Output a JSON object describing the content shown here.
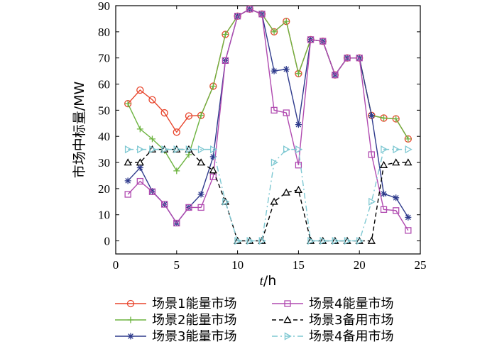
{
  "chart_data": {
    "type": "line",
    "title": "",
    "xlabel_italic": "t",
    "xlabel_unit": "/h",
    "ylabel": "市场中标量/MW",
    "xlim": [
      0,
      25
    ],
    "ylim": [
      -5,
      90
    ],
    "xticks": [
      0,
      5,
      10,
      15,
      20,
      25
    ],
    "yticks": [
      0,
      10,
      20,
      30,
      40,
      50,
      60,
      70,
      80,
      90
    ],
    "grid": false,
    "legend_position": "bottom",
    "x": [
      1,
      2,
      3,
      4,
      5,
      6,
      7,
      8,
      9,
      10,
      11,
      12,
      13,
      14,
      15,
      16,
      17,
      18,
      19,
      20,
      21,
      22,
      23,
      24
    ],
    "series": [
      {
        "name": "场景1能量市场",
        "color": "#e8452c",
        "marker": "circle",
        "dash": "solid",
        "values": [
          52.5,
          57.7,
          54,
          49,
          41.6,
          47.8,
          48,
          59.2,
          79,
          86,
          88.7,
          86.8,
          80,
          84,
          64,
          77,
          76.4,
          63.5,
          70,
          70,
          48,
          47,
          46.7,
          39
        ]
      },
      {
        "name": "场景2能量市场",
        "color": "#6cb33f",
        "marker": "plus",
        "dash": "solid",
        "values": [
          52.5,
          42.8,
          39,
          34.6,
          26.8,
          33,
          48,
          59.2,
          79,
          86,
          88.7,
          86.8,
          80,
          84,
          64,
          77,
          76.4,
          63.5,
          70,
          70,
          48,
          47,
          46.7,
          39
        ]
      },
      {
        "name": "场景3能量市场",
        "color": "#2e3a8c",
        "marker": "star",
        "dash": "solid",
        "values": [
          23,
          28,
          19,
          14,
          6.8,
          12.8,
          17.8,
          32.2,
          69,
          86,
          88.7,
          86.8,
          65,
          65.7,
          44.5,
          77,
          76.4,
          63.5,
          70,
          70,
          48,
          18,
          16.5,
          9
        ]
      },
      {
        "name": "场景4能量市场",
        "color": "#b04ab0",
        "marker": "square",
        "dash": "solid",
        "values": [
          17.8,
          22.8,
          18.8,
          14,
          6.8,
          12.8,
          12.8,
          24.5,
          69,
          86,
          88.7,
          86.8,
          50,
          49,
          29,
          77,
          76.4,
          63.5,
          70,
          70,
          33,
          12,
          11.6,
          4
        ]
      },
      {
        "name": "场景3备用市场",
        "color": "#000000",
        "marker": "triangle-up",
        "dash": "dashed",
        "values": [
          30,
          30,
          35,
          35,
          35,
          35,
          30,
          27,
          15,
          0,
          0,
          0,
          15,
          18.5,
          19.5,
          0,
          0,
          0,
          0,
          0,
          0,
          29,
          30,
          30
        ]
      },
      {
        "name": "场景4备用市场",
        "color": "#7ec8d2",
        "marker": "triangle-right",
        "dash": "dashdot",
        "values": [
          35,
          35,
          35,
          35,
          35,
          35,
          35,
          35,
          15,
          0,
          0,
          0,
          30,
          35,
          35,
          0,
          0,
          0,
          0,
          0,
          15,
          35,
          35,
          35
        ]
      }
    ]
  }
}
